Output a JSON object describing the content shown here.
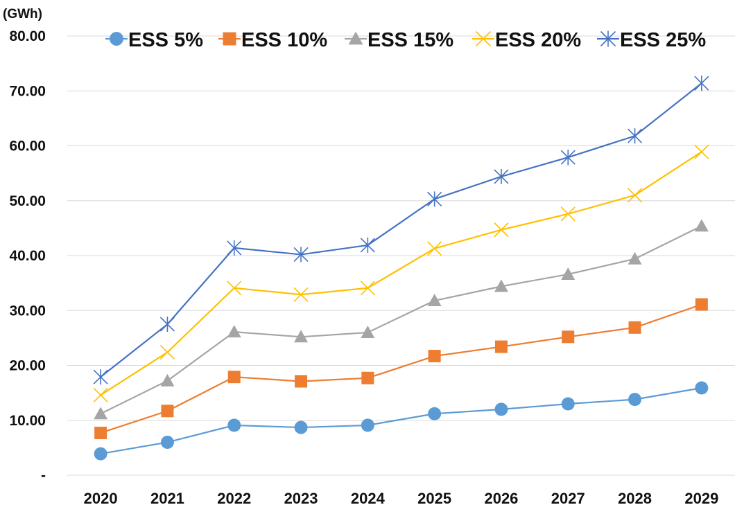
{
  "chart_data": {
    "type": "line",
    "unit_label": "(GWh)",
    "title": "",
    "xlabel": "",
    "ylabel": "",
    "categories": [
      "2020",
      "2021",
      "2022",
      "2023",
      "2024",
      "2025",
      "2026",
      "2027",
      "2028",
      "2029"
    ],
    "ylim": [
      0,
      80
    ],
    "y_ticks": [
      "-",
      "10.00",
      "20.00",
      "30.00",
      "40.00",
      "50.00",
      "60.00",
      "70.00",
      "80.00"
    ],
    "grid": true,
    "legend_position": "top",
    "series": [
      {
        "name": "ESS 5%",
        "marker": "circle",
        "color": "#5b9bd5",
        "values": [
          3.9,
          6.0,
          9.1,
          8.7,
          9.1,
          11.2,
          12.0,
          13.0,
          13.8,
          15.9
        ]
      },
      {
        "name": "ESS 10%",
        "marker": "square",
        "color": "#ed7d31",
        "values": [
          7.7,
          11.7,
          17.9,
          17.1,
          17.7,
          21.7,
          23.4,
          25.2,
          26.9,
          31.1
        ]
      },
      {
        "name": "ESS 15%",
        "marker": "triangle",
        "color": "#a5a5a5",
        "values": [
          11.2,
          17.2,
          26.1,
          25.2,
          26.0,
          31.8,
          34.4,
          36.6,
          39.4,
          45.4
        ]
      },
      {
        "name": "ESS 20%",
        "marker": "x",
        "color": "#ffc000",
        "values": [
          14.6,
          22.4,
          34.1,
          32.9,
          34.1,
          41.3,
          44.7,
          47.6,
          51.0,
          58.9
        ]
      },
      {
        "name": "ESS 25%",
        "marker": "asterisk",
        "color": "#4472c4",
        "values": [
          17.9,
          27.5,
          41.4,
          40.2,
          41.9,
          50.3,
          54.4,
          57.9,
          61.8,
          71.4
        ]
      }
    ]
  }
}
